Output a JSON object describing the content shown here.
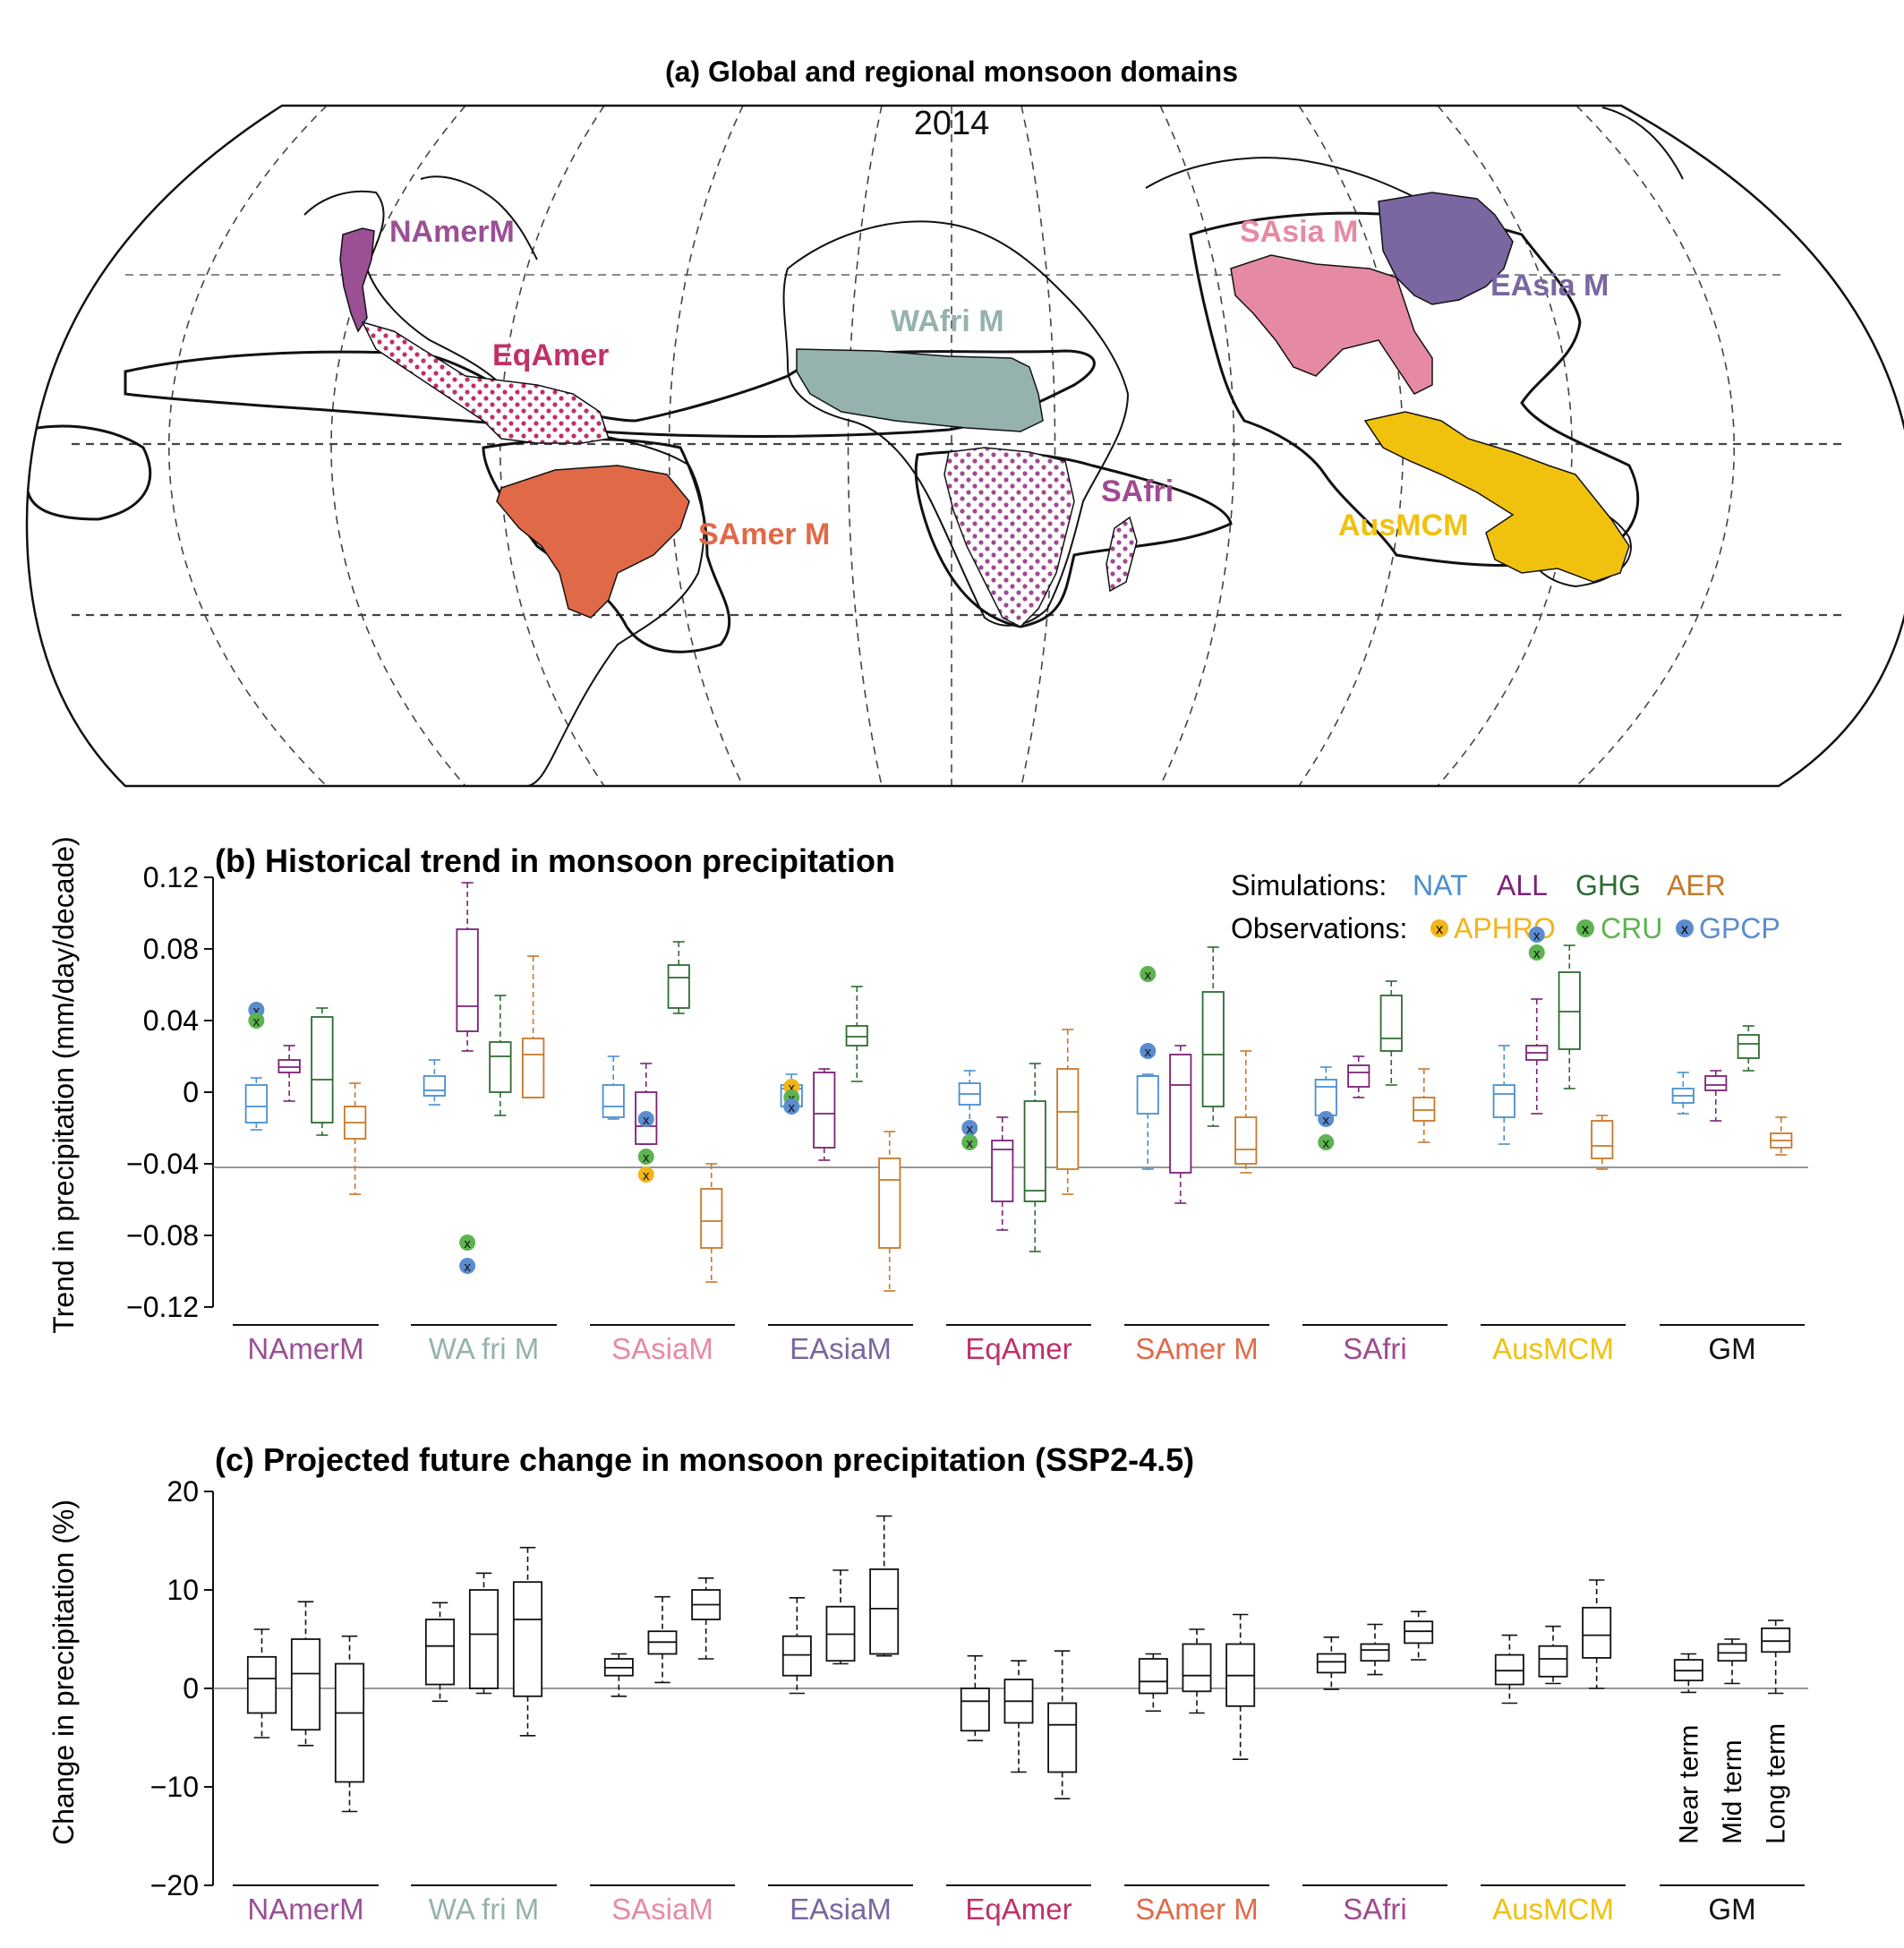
{
  "colors": {
    "NAmerM": "#9b4f95",
    "WAfriM": "#95b2ae",
    "SAsiaM": "#e68aa3",
    "EAsiaM": "#7a66a0",
    "EqAmer": "#c0306a",
    "SAmerM": "#e06a48",
    "SAfri": "#a04a90",
    "AusMCM": "#f0c20e",
    "GM": "#111111",
    "NAT": "#4a8fd0",
    "ALL": "#7b2277",
    "GHG": "#2e6b33",
    "AER": "#c87828",
    "APHRO": "#f2b51a",
    "CRU": "#5db350",
    "GPCP": "#5b8ccf",
    "proj": "#111111"
  },
  "map": {
    "title": "(a) Global and regional monsoon domains",
    "year_label": "2014",
    "regions": [
      {
        "key": "NAmerM",
        "label": "NAmerM",
        "fill": "solid"
      },
      {
        "key": "EqAmer",
        "label": "EqAmer",
        "fill": "dots"
      },
      {
        "key": "WAfriM",
        "label": "WAfri M",
        "fill": "solid"
      },
      {
        "key": "SAmerM",
        "label": "SAmer M",
        "fill": "solid"
      },
      {
        "key": "SAfri",
        "label": "SAfri",
        "fill": "dots"
      },
      {
        "key": "SAsiaM",
        "label": "SAsia M",
        "fill": "solid"
      },
      {
        "key": "EAsiaM",
        "label": "EAsia M",
        "fill": "solid"
      },
      {
        "key": "AusMCM",
        "label": "AusMCM",
        "fill": "solid"
      }
    ]
  },
  "chart_data": [
    {
      "type": "box",
      "title": "(b) Historical trend in monsoon precipitation",
      "ylabel": "Trend in precipitation (mm/day/decade)",
      "ylim": [
        -0.13,
        0.13
      ],
      "yticks": [
        0.12,
        0.08,
        0.04,
        0,
        -0.04,
        -0.08,
        -0.12
      ],
      "ytick_labels": [
        "0.12",
        "0.08",
        "0.04",
        "0",
        "−0.04",
        "−0.08",
        "−0.12"
      ],
      "reference_line": -0.042,
      "legend": {
        "simulations_label": "Simulations:",
        "simulations": [
          "NAT",
          "ALL",
          "GHG",
          "AER"
        ],
        "observations_label": "Observations:",
        "observations": [
          "APHRO",
          "CRU",
          "GPCP"
        ],
        "marker": "x",
        "placement": "top-right"
      },
      "series_order": [
        "NAT",
        "ALL",
        "GHG",
        "AER"
      ],
      "categories": [
        {
          "key": "NAmerM",
          "label": "NAmerM",
          "boxes": [
            {
              "series": "NAT",
              "whislo": -0.021,
              "q1": -0.017,
              "med": -0.008,
              "q3": 0.004,
              "whishi": 0.008
            },
            {
              "series": "ALL",
              "whislo": -0.005,
              "q1": 0.011,
              "med": 0.014,
              "q3": 0.018,
              "whishi": 0.026
            },
            {
              "series": "GHG",
              "whislo": -0.024,
              "q1": -0.017,
              "med": 0.007,
              "q3": 0.042,
              "whishi": 0.047
            },
            {
              "series": "AER",
              "whislo": -0.057,
              "q1": -0.026,
              "med": -0.017,
              "q3": -0.008,
              "whishi": 0.005
            }
          ],
          "obs": [
            {
              "name": "GPCP",
              "value": 0.046,
              "pos": 0.5
            },
            {
              "name": "CRU",
              "value": 0.04,
              "pos": 0.5
            }
          ]
        },
        {
          "key": "WAfriM",
          "label": "WA fri M",
          "boxes": [
            {
              "series": "NAT",
              "whislo": -0.007,
              "q1": -0.002,
              "med": 0.001,
              "q3": 0.009,
              "whishi": 0.018
            },
            {
              "series": "ALL",
              "whislo": 0.023,
              "q1": 0.034,
              "med": 0.048,
              "q3": 0.091,
              "whishi": 0.117
            },
            {
              "series": "GHG",
              "whislo": -0.013,
              "q1": 0.0,
              "med": 0.02,
              "q3": 0.028,
              "whishi": 0.054
            },
            {
              "series": "AER",
              "whislo": -0.003,
              "q1": -0.003,
              "med": 0.021,
              "q3": 0.03,
              "whishi": 0.076
            }
          ],
          "obs": [
            {
              "name": "CRU",
              "value": -0.084,
              "pos": 1.5
            },
            {
              "name": "GPCP",
              "value": -0.097,
              "pos": 1.5
            }
          ]
        },
        {
          "key": "SAsiaM",
          "label": "SAsiaM",
          "boxes": [
            {
              "series": "NAT",
              "whislo": -0.015,
              "q1": -0.014,
              "med": -0.008,
              "q3": 0.004,
              "whishi": 0.02
            },
            {
              "series": "ALL",
              "whislo": -0.029,
              "q1": -0.029,
              "med": -0.019,
              "q3": 0.0,
              "whishi": 0.016
            },
            {
              "series": "GHG",
              "whislo": 0.044,
              "q1": 0.047,
              "med": 0.064,
              "q3": 0.071,
              "whishi": 0.084
            },
            {
              "series": "AER",
              "whislo": -0.106,
              "q1": -0.087,
              "med": -0.072,
              "q3": -0.054,
              "whishi": -0.04
            }
          ],
          "obs": [
            {
              "name": "GPCP",
              "value": -0.015,
              "pos": 1.5
            },
            {
              "name": "CRU",
              "value": -0.036,
              "pos": 1.5
            },
            {
              "name": "APHRO",
              "value": -0.046,
              "pos": 1.5
            }
          ]
        },
        {
          "key": "EAsiaM",
          "label": "EAsiaM",
          "boxes": [
            {
              "series": "NAT",
              "whislo": -0.008,
              "q1": -0.008,
              "med": 0.002,
              "q3": 0.004,
              "whishi": 0.01
            },
            {
              "series": "ALL",
              "whislo": -0.038,
              "q1": -0.031,
              "med": -0.012,
              "q3": 0.011,
              "whishi": 0.013
            },
            {
              "series": "GHG",
              "whislo": 0.006,
              "q1": 0.026,
              "med": 0.031,
              "q3": 0.037,
              "whishi": 0.059
            },
            {
              "series": "AER",
              "whislo": -0.111,
              "q1": -0.087,
              "med": -0.049,
              "q3": -0.037,
              "whishi": -0.022
            }
          ],
          "obs": [
            {
              "name": "APHRO",
              "value": 0.003,
              "pos": 0.5
            },
            {
              "name": "CRU",
              "value": -0.003,
              "pos": 0.5
            },
            {
              "name": "GPCP",
              "value": -0.008,
              "pos": 0.5
            }
          ]
        },
        {
          "key": "EqAmer",
          "label": "EqAmer",
          "boxes": [
            {
              "series": "NAT",
              "whislo": -0.025,
              "q1": -0.007,
              "med": -0.001,
              "q3": 0.005,
              "whishi": 0.012
            },
            {
              "series": "ALL",
              "whislo": -0.077,
              "q1": -0.061,
              "med": -0.032,
              "q3": -0.027,
              "whishi": -0.014
            },
            {
              "series": "GHG",
              "whislo": -0.089,
              "q1": -0.061,
              "med": -0.055,
              "q3": -0.005,
              "whishi": 0.016
            },
            {
              "series": "AER",
              "whislo": -0.057,
              "q1": -0.043,
              "med": -0.011,
              "q3": 0.013,
              "whishi": 0.035
            }
          ],
          "obs": [
            {
              "name": "GPCP",
              "value": -0.02,
              "pos": 0.5
            },
            {
              "name": "CRU",
              "value": -0.028,
              "pos": 0.5
            }
          ]
        },
        {
          "key": "SAmerM",
          "label": "SAmer M",
          "boxes": [
            {
              "series": "NAT",
              "whislo": -0.043,
              "q1": -0.012,
              "med": 0.009,
              "q3": 0.009,
              "whishi": 0.01
            },
            {
              "series": "ALL",
              "whislo": -0.062,
              "q1": -0.045,
              "med": 0.004,
              "q3": 0.021,
              "whishi": 0.026
            },
            {
              "series": "GHG",
              "whislo": -0.019,
              "q1": -0.008,
              "med": 0.021,
              "q3": 0.056,
              "whishi": 0.081
            },
            {
              "series": "AER",
              "whislo": -0.045,
              "q1": -0.04,
              "med": -0.032,
              "q3": -0.014,
              "whishi": 0.023
            }
          ],
          "obs": [
            {
              "name": "CRU",
              "value": 0.066,
              "pos": 0.5
            },
            {
              "name": "GPCP",
              "value": 0.023,
              "pos": 0.5
            }
          ]
        },
        {
          "key": "SAfri",
          "label": "SAfri",
          "boxes": [
            {
              "series": "NAT",
              "whislo": -0.015,
              "q1": -0.013,
              "med": 0.003,
              "q3": 0.007,
              "whishi": 0.014
            },
            {
              "series": "ALL",
              "whislo": -0.003,
              "q1": 0.003,
              "med": 0.011,
              "q3": 0.015,
              "whishi": 0.02
            },
            {
              "series": "GHG",
              "whislo": 0.004,
              "q1": 0.023,
              "med": 0.03,
              "q3": 0.054,
              "whishi": 0.062
            },
            {
              "series": "AER",
              "whislo": -0.028,
              "q1": -0.016,
              "med": -0.01,
              "q3": -0.003,
              "whishi": 0.013
            }
          ],
          "obs": [
            {
              "name": "GPCP",
              "value": -0.015,
              "pos": 0.5
            },
            {
              "name": "CRU",
              "value": -0.028,
              "pos": 0.5
            }
          ]
        },
        {
          "key": "AusMCM",
          "label": "AusMCM",
          "boxes": [
            {
              "series": "NAT",
              "whislo": -0.029,
              "q1": -0.014,
              "med": -0.001,
              "q3": 0.004,
              "whishi": 0.026
            },
            {
              "series": "ALL",
              "whislo": -0.012,
              "q1": 0.018,
              "med": 0.022,
              "q3": 0.026,
              "whishi": 0.052
            },
            {
              "series": "GHG",
              "whislo": 0.002,
              "q1": 0.024,
              "med": 0.045,
              "q3": 0.067,
              "whishi": 0.082
            },
            {
              "series": "AER",
              "whislo": -0.043,
              "q1": -0.037,
              "med": -0.03,
              "q3": -0.016,
              "whishi": -0.013
            }
          ],
          "obs": [
            {
              "name": "GPCP",
              "value": 0.088,
              "pos": 1.5
            },
            {
              "name": "CRU",
              "value": 0.078,
              "pos": 1.5
            }
          ]
        },
        {
          "key": "GM",
          "label": "GM",
          "boxes": [
            {
              "series": "NAT",
              "whislo": -0.012,
              "q1": -0.006,
              "med": -0.002,
              "q3": 0.002,
              "whishi": 0.011
            },
            {
              "series": "ALL",
              "whislo": -0.016,
              "q1": 0.001,
              "med": 0.004,
              "q3": 0.009,
              "whishi": 0.012
            },
            {
              "series": "GHG",
              "whislo": 0.012,
              "q1": 0.019,
              "med": 0.027,
              "q3": 0.032,
              "whishi": 0.037
            },
            {
              "series": "AER",
              "whislo": -0.035,
              "q1": -0.031,
              "med": -0.027,
              "q3": -0.023,
              "whishi": -0.014
            }
          ],
          "obs": []
        }
      ]
    },
    {
      "type": "box",
      "title": "(c) Projected future change in monsoon precipitation (SSP2-4.5)",
      "ylabel": "Change in precipitation (%)",
      "ylim": [
        -20,
        20
      ],
      "yticks": [
        20,
        10,
        0,
        -10,
        -20
      ],
      "ytick_labels": [
        "20",
        "10",
        "0",
        "−10",
        "−20"
      ],
      "reference_line": 0,
      "period_labels": [
        "Near term",
        "Mid term",
        "Long term"
      ],
      "categories": [
        {
          "key": "NAmerM",
          "label": "NAmerM",
          "boxes": [
            {
              "whislo": -5.0,
              "q1": -2.5,
              "med": 1.0,
              "q3": 3.2,
              "whishi": 6.0
            },
            {
              "whislo": -5.8,
              "q1": -4.2,
              "med": 1.5,
              "q3": 5.0,
              "whishi": 8.8
            },
            {
              "whislo": -12.5,
              "q1": -9.5,
              "med": -2.5,
              "q3": 2.5,
              "whishi": 5.3
            }
          ]
        },
        {
          "key": "WAfriM",
          "label": "WA fri M",
          "boxes": [
            {
              "whislo": -1.3,
              "q1": 0.4,
              "med": 4.3,
              "q3": 7.0,
              "whishi": 8.7
            },
            {
              "whislo": -0.5,
              "q1": 0.0,
              "med": 5.5,
              "q3": 10.0,
              "whishi": 11.7
            },
            {
              "whislo": -4.8,
              "q1": -0.8,
              "med": 7.0,
              "q3": 10.8,
              "whishi": 14.3
            }
          ]
        },
        {
          "key": "SAsiaM",
          "label": "SAsiaM",
          "boxes": [
            {
              "whislo": -0.8,
              "q1": 1.3,
              "med": 2.1,
              "q3": 3.0,
              "whishi": 3.5
            },
            {
              "whislo": 0.6,
              "q1": 3.5,
              "med": 4.7,
              "q3": 5.8,
              "whishi": 9.3
            },
            {
              "whislo": 3.0,
              "q1": 7.0,
              "med": 8.5,
              "q3": 10.0,
              "whishi": 11.2
            }
          ]
        },
        {
          "key": "EAsiaM",
          "label": "EAsiaM",
          "boxes": [
            {
              "whislo": -0.5,
              "q1": 1.3,
              "med": 3.4,
              "q3": 5.3,
              "whishi": 9.2
            },
            {
              "whislo": 2.5,
              "q1": 2.8,
              "med": 5.5,
              "q3": 8.3,
              "whishi": 12.0
            },
            {
              "whislo": 3.3,
              "q1": 3.5,
              "med": 8.1,
              "q3": 12.1,
              "whishi": 17.5
            }
          ]
        },
        {
          "key": "EqAmer",
          "label": "EqAmer",
          "boxes": [
            {
              "whislo": -5.3,
              "q1": -4.3,
              "med": -1.3,
              "q3": 0.0,
              "whishi": 3.3
            },
            {
              "whislo": -8.5,
              "q1": -3.5,
              "med": -1.3,
              "q3": 0.9,
              "whishi": 2.8
            },
            {
              "whislo": -11.2,
              "q1": -8.5,
              "med": -3.7,
              "q3": -1.5,
              "whishi": 3.8
            }
          ]
        },
        {
          "key": "SAmerM",
          "label": "SAmer M",
          "boxes": [
            {
              "whislo": -2.3,
              "q1": -0.5,
              "med": 0.7,
              "q3": 3.0,
              "whishi": 3.5
            },
            {
              "whislo": -2.5,
              "q1": -0.3,
              "med": 1.3,
              "q3": 4.5,
              "whishi": 6.0
            },
            {
              "whislo": -7.2,
              "q1": -1.8,
              "med": 1.3,
              "q3": 4.5,
              "whishi": 7.5
            }
          ]
        },
        {
          "key": "SAfri",
          "label": "SAfri",
          "boxes": [
            {
              "whislo": -0.1,
              "q1": 1.6,
              "med": 2.7,
              "q3": 3.5,
              "whishi": 5.2
            },
            {
              "whislo": 1.4,
              "q1": 2.8,
              "med": 3.9,
              "q3": 4.5,
              "whishi": 6.5
            },
            {
              "whislo": 2.9,
              "q1": 4.6,
              "med": 5.8,
              "q3": 6.8,
              "whishi": 7.8
            }
          ]
        },
        {
          "key": "AusMCM",
          "label": "AusMCM",
          "boxes": [
            {
              "whislo": -1.5,
              "q1": 0.4,
              "med": 1.8,
              "q3": 3.4,
              "whishi": 5.4
            },
            {
              "whislo": 0.5,
              "q1": 1.2,
              "med": 3.0,
              "q3": 4.3,
              "whishi": 6.3
            },
            {
              "whislo": 0.0,
              "q1": 3.1,
              "med": 5.4,
              "q3": 8.2,
              "whishi": 11.0
            }
          ]
        },
        {
          "key": "GM",
          "label": "GM",
          "boxes": [
            {
              "whislo": -0.4,
              "q1": 0.8,
              "med": 1.8,
              "q3": 2.9,
              "whishi": 3.5
            },
            {
              "whislo": 0.5,
              "q1": 2.8,
              "med": 3.6,
              "q3": 4.5,
              "whishi": 5.0
            },
            {
              "whislo": -0.5,
              "q1": 3.7,
              "med": 4.8,
              "q3": 6.1,
              "whishi": 6.9
            }
          ]
        }
      ]
    }
  ]
}
